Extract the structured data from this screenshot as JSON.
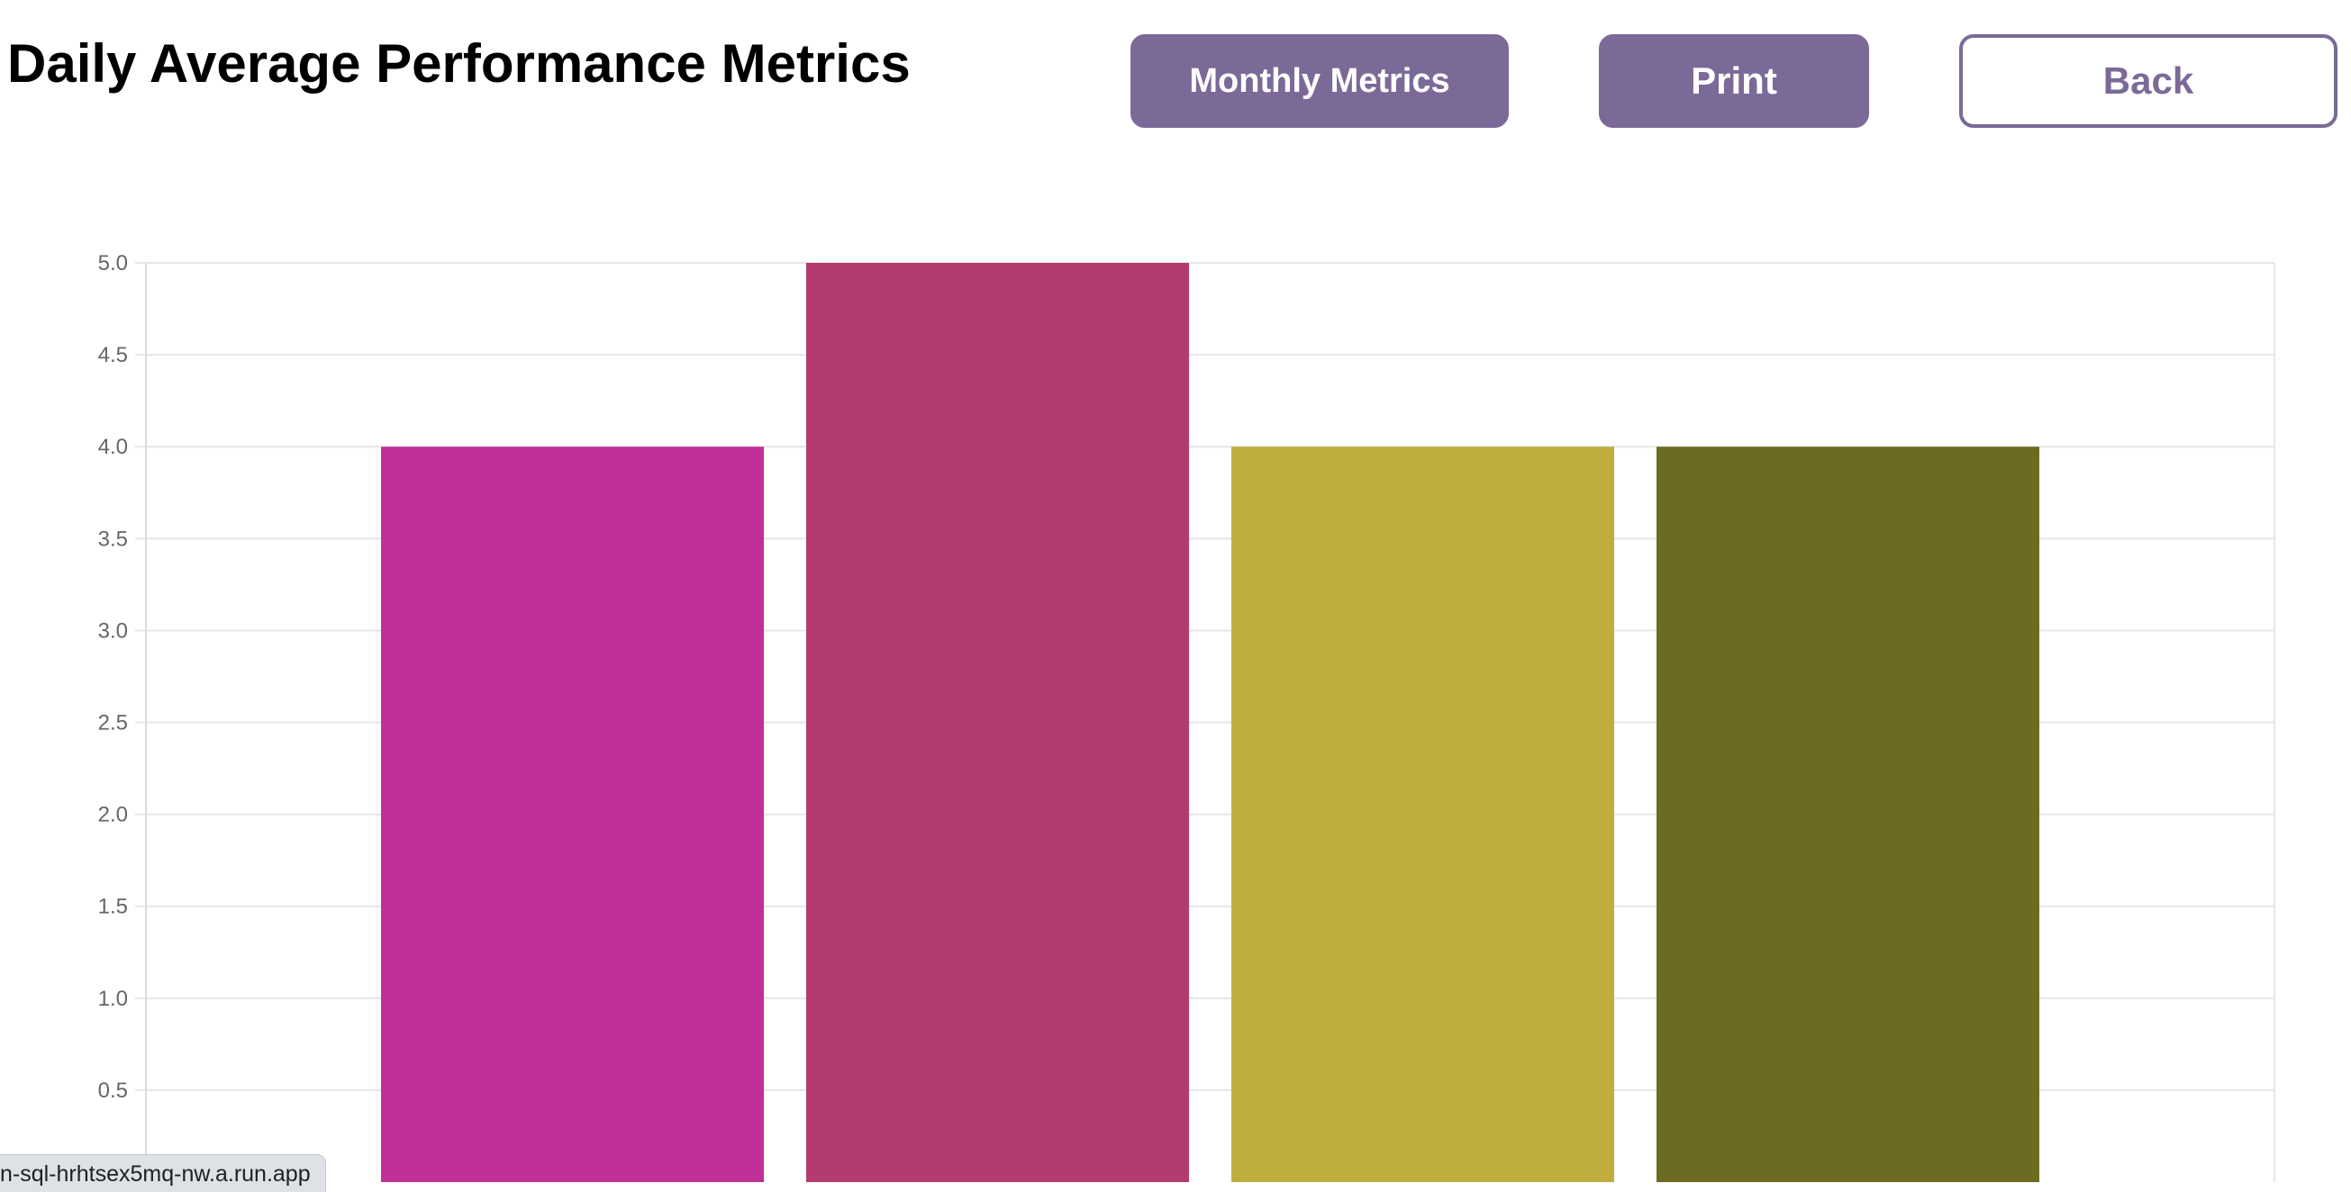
{
  "page": {
    "title": "Daily Average Performance Metrics"
  },
  "buttons": {
    "monthly_label": "Monthly Metrics",
    "print_label": "Print",
    "back_label": "Back"
  },
  "colors": {
    "button_accent": "#7b6a98"
  },
  "chart_data": {
    "type": "bar",
    "categories": [
      "",
      "",
      "",
      ""
    ],
    "values": [
      4,
      5,
      4,
      4
    ],
    "colors": [
      "#c13096",
      "#b33b6f",
      "#bfae3e",
      "#6d6a21"
    ],
    "ylim": [
      0,
      5
    ],
    "yticks": [
      0.5,
      1.0,
      1.5,
      2.0,
      2.5,
      3.0,
      3.5,
      4.0,
      4.5,
      5.0
    ],
    "ytick_labels": [
      "0.5",
      "1.0",
      "1.5",
      "2.0",
      "2.5",
      "3.0",
      "3.5",
      "4.0",
      "4.5",
      "5.0"
    ],
    "grid": true,
    "legend": false
  },
  "status_bar": {
    "url_text": "n-sql-hrhtsex5mq-nw.a.run.app"
  }
}
